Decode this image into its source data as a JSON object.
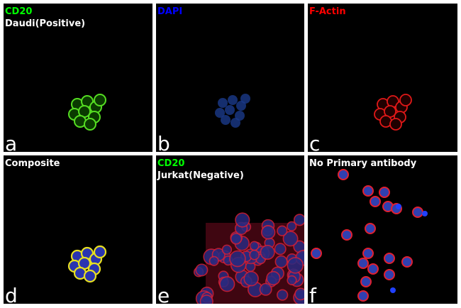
{
  "panels": [
    {
      "letter": "a",
      "labels": [
        {
          "text": "CD20",
          "color": "#00ff00"
        },
        {
          "text": "Daudi(Positive)",
          "color": "#ffffff"
        }
      ],
      "stain": "green"
    },
    {
      "letter": "b",
      "labels": [
        {
          "text": "DAPI",
          "color": "#0000ff"
        }
      ],
      "stain": "blue"
    },
    {
      "letter": "c",
      "labels": [
        {
          "text": "F-Actin",
          "color": "#ff0000"
        }
      ],
      "stain": "red"
    },
    {
      "letter": "d",
      "labels": [
        {
          "text": "Composite",
          "color": "#ffffff"
        }
      ],
      "stain": "composite"
    },
    {
      "letter": "e",
      "labels": [
        {
          "text": "CD20",
          "color": "#00ff00"
        },
        {
          "text": "Jurkat(Negative)",
          "color": "#ffffff"
        }
      ],
      "stain": "jurkat"
    },
    {
      "letter": "f",
      "labels": [
        {
          "text": "No Primary antibody",
          "color": "#ffffff"
        }
      ],
      "stain": "noprimary"
    }
  ]
}
